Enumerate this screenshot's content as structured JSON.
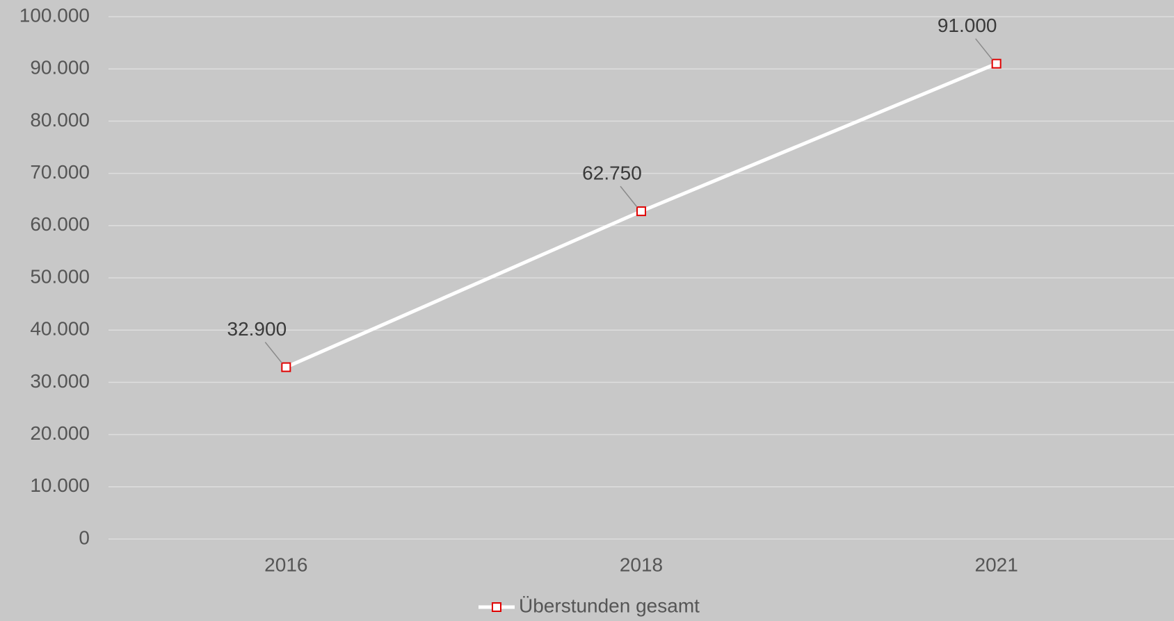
{
  "chart_data": {
    "type": "line",
    "categories": [
      "2016",
      "2018",
      "2021"
    ],
    "series": [
      {
        "name": "Überstunden gesamt",
        "color": "#ffffff",
        "marker_color": "#e00000",
        "values": [
          32900,
          62750,
          91000
        ],
        "value_labels": [
          "32.900",
          "62.750",
          "91.000"
        ]
      }
    ],
    "ylim": [
      0,
      100000
    ],
    "yticks": [
      {
        "value": 0,
        "label": "0"
      },
      {
        "value": 10000,
        "label": "10.000"
      },
      {
        "value": 20000,
        "label": "20.000"
      },
      {
        "value": 30000,
        "label": "30.000"
      },
      {
        "value": 40000,
        "label": "40.000"
      },
      {
        "value": 50000,
        "label": "50.000"
      },
      {
        "value": 60000,
        "label": "60.000"
      },
      {
        "value": 70000,
        "label": "70.000"
      },
      {
        "value": 80000,
        "label": "80.000"
      },
      {
        "value": 90000,
        "label": "90.000"
      },
      {
        "value": 100000,
        "label": "100.000"
      }
    ],
    "grid": true,
    "legend": "bottom"
  }
}
